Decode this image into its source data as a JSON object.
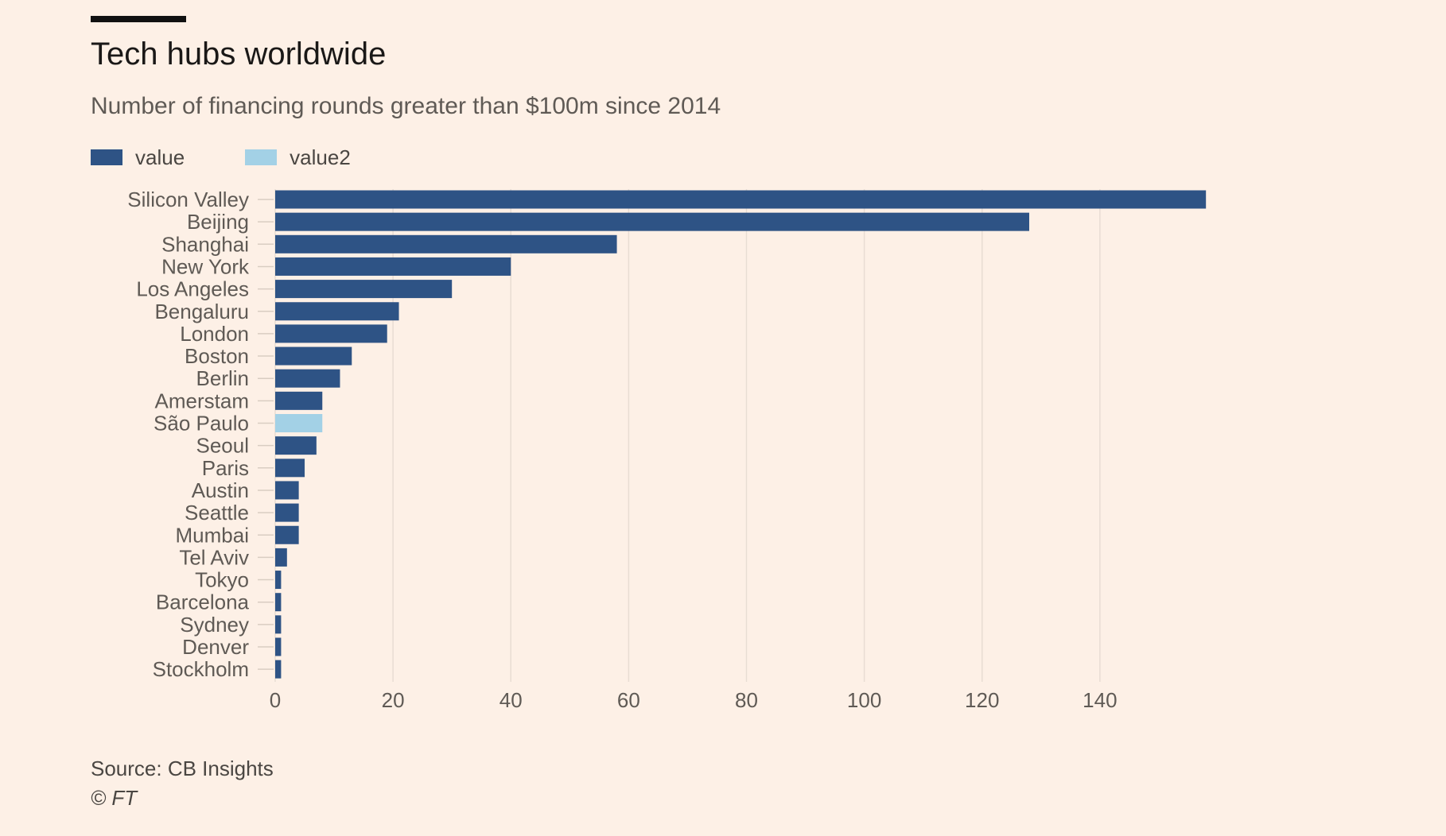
{
  "header": {
    "title": "Tech hubs worldwide",
    "subtitle": "Number of financing rounds greater than $100m since 2014"
  },
  "footer": {
    "source": "Source: CB Insights",
    "copyright": "© FT"
  },
  "colors": {
    "value": "#2e5385",
    "value2": "#a3d1e6",
    "grid": "#e8ddd3",
    "tick_text": "#5f5a55"
  },
  "chart_data": {
    "type": "bar",
    "orientation": "horizontal",
    "title": "Tech hubs worldwide",
    "subtitle": "Number of financing rounds greater than $100m since 2014",
    "legend_position": "top-left",
    "categories": [
      "Silicon Valley",
      "Beijing",
      "Shanghai",
      "New York",
      "Los Angeles",
      "Bengaluru",
      "London",
      "Boston",
      "Berlin",
      "Amerstam",
      "São Paulo",
      "Seoul",
      "Paris",
      "Austin",
      "Seattle",
      "Mumbai",
      "Tel Aviv",
      "Tokyo",
      "Barcelona",
      "Sydney",
      "Denver",
      "Stockholm"
    ],
    "series": [
      {
        "name": "value",
        "color": "#2e5385",
        "values": [
          158,
          128,
          58,
          40,
          30,
          21,
          19,
          13,
          11,
          8,
          null,
          7,
          5,
          4,
          4,
          4,
          2,
          1,
          1,
          1,
          1,
          1
        ]
      },
      {
        "name": "value2",
        "color": "#a3d1e6",
        "values": [
          null,
          null,
          null,
          null,
          null,
          null,
          null,
          null,
          null,
          null,
          8,
          null,
          null,
          null,
          null,
          null,
          null,
          null,
          null,
          null,
          null,
          null
        ]
      }
    ],
    "xlim": [
      0,
      160
    ],
    "xticks": [
      0,
      20,
      40,
      60,
      80,
      100,
      120,
      140
    ],
    "xlabel": "",
    "ylabel": "",
    "grid": true
  }
}
